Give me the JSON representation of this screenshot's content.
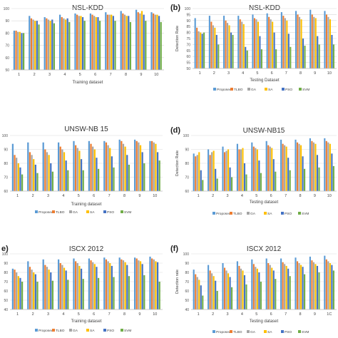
{
  "series_colors": [
    "#5B9BD5",
    "#ED7D31",
    "#A5A5A5",
    "#FFC000",
    "#4472C4",
    "#70AD47"
  ],
  "chart_data": [
    {
      "panel_label": "",
      "type": "bar",
      "title": "NSL-KDD",
      "xlabel": "Training dataset",
      "ylabel": "",
      "ylim": [
        50,
        100
      ],
      "yticks": [
        50,
        60,
        70,
        80,
        90,
        100
      ],
      "grid": true,
      "legend": "none",
      "categories": [
        "1",
        "2",
        "3",
        "4",
        "5",
        "6",
        "7",
        "8",
        "9",
        "10"
      ],
      "series": [
        {
          "name": "Proposed",
          "values": [
            82,
            94,
            93,
            95,
            96,
            96,
            97,
            98,
            99,
            97
          ]
        },
        {
          "name": "TLBO",
          "values": [
            82,
            92,
            92,
            93,
            95,
            95,
            95,
            96,
            97,
            96
          ]
        },
        {
          "name": "GA",
          "values": [
            81,
            91,
            91,
            92,
            94,
            94,
            95,
            95,
            96,
            95
          ]
        },
        {
          "name": "SA",
          "values": [
            81,
            90,
            90,
            91,
            94,
            93,
            95,
            94,
            98,
            95
          ]
        },
        {
          "name": "PSO",
          "values": [
            80,
            90,
            91,
            92,
            93,
            93,
            94,
            94,
            95,
            94
          ]
        },
        {
          "name": "SVM",
          "values": [
            80,
            87,
            88,
            89,
            90,
            90,
            90,
            89,
            90,
            89
          ]
        }
      ]
    },
    {
      "panel_label": "(b)",
      "type": "bar",
      "title": "NSL-KDD",
      "xlabel": "Testing Dataset",
      "ylabel": "Detection Rate",
      "ylim": [
        50,
        100
      ],
      "yticks": [
        50,
        55,
        60,
        65,
        70,
        75,
        80,
        85,
        90,
        95,
        100
      ],
      "grid": true,
      "legend": "bottom",
      "categories": [
        "1",
        "2",
        "3",
        "4",
        "5",
        "6",
        "7",
        "8",
        "9",
        "10"
      ],
      "series": [
        {
          "name": "Proposed",
          "values": [
            92,
            94,
            94,
            94,
            95,
            96,
            97,
            98,
            99,
            98
          ]
        },
        {
          "name": "TLBO",
          "values": [
            84,
            89,
            90,
            91,
            92,
            93,
            94,
            95,
            95,
            95
          ]
        },
        {
          "name": "GA",
          "values": [
            81,
            86,
            88,
            89,
            91,
            91,
            92,
            93,
            93,
            93
          ]
        },
        {
          "name": "SA",
          "values": [
            80,
            84,
            86,
            87,
            89,
            89,
            90,
            91,
            92,
            91
          ]
        },
        {
          "name": "PSO",
          "values": [
            79,
            78,
            80,
            68,
            77,
            80,
            79,
            75,
            77,
            78
          ]
        },
        {
          "name": "SVM",
          "values": [
            80,
            70,
            78,
            65,
            66,
            66,
            68,
            69,
            70,
            70
          ]
        }
      ]
    },
    {
      "panel_label": "",
      "type": "bar",
      "title": "UNSW-NB 15",
      "xlabel": "Training dataset",
      "ylabel": "",
      "ylim": [
        60,
        100
      ],
      "yticks": [
        60,
        70,
        80,
        90,
        100
      ],
      "grid": true,
      "legend": "bottom",
      "categories": [
        "1",
        "2",
        "3",
        "4",
        "5",
        "6",
        "7",
        "8",
        "9",
        "10"
      ],
      "series": [
        {
          "name": "Proposed",
          "values": [
            94,
            95,
            95,
            95,
            96,
            96,
            96,
            97,
            97,
            96
          ]
        },
        {
          "name": "TLBO",
          "values": [
            86,
            88,
            90,
            92,
            93,
            94,
            95,
            96,
            96,
            96
          ]
        },
        {
          "name": "GA",
          "values": [
            84,
            86,
            88,
            90,
            91,
            92,
            93,
            94,
            95,
            95
          ]
        },
        {
          "name": "SA",
          "values": [
            80,
            83,
            86,
            88,
            89,
            90,
            91,
            92,
            93,
            94
          ]
        },
        {
          "name": "PSO",
          "values": [
            77,
            79,
            80,
            82,
            83,
            84,
            85,
            86,
            88,
            88
          ]
        },
        {
          "name": "SVM",
          "values": [
            72,
            73,
            74,
            75,
            75,
            76,
            77,
            79,
            80,
            82
          ]
        }
      ]
    },
    {
      "panel_label": "(d)",
      "type": "bar",
      "title": "UNSW-NB15",
      "xlabel": "Testing dataset",
      "ylabel": "Detection Rate",
      "ylim": [
        60,
        100
      ],
      "yticks": [
        60,
        70,
        80,
        90,
        100
      ],
      "grid": true,
      "legend": "bottom",
      "categories": [
        "1",
        "2",
        "3",
        "4",
        "5",
        "6",
        "7",
        "8",
        "9",
        "10"
      ],
      "series": [
        {
          "name": "Proposed",
          "values": [
            87,
            90,
            92,
            94,
            95,
            96,
            97,
            97,
            98,
            98
          ]
        },
        {
          "name": "TLBO",
          "values": [
            85,
            86,
            88,
            90,
            92,
            93,
            94,
            95,
            96,
            96
          ]
        },
        {
          "name": "GA",
          "values": [
            86,
            88,
            89,
            90,
            91,
            92,
            93,
            94,
            95,
            95
          ]
        },
        {
          "name": "SA",
          "values": [
            88,
            89,
            90,
            91,
            90,
            91,
            92,
            93,
            94,
            94
          ]
        },
        {
          "name": "PSO",
          "values": [
            75,
            76,
            77,
            80,
            82,
            83,
            84,
            85,
            86,
            87
          ]
        },
        {
          "name": "SVM",
          "values": [
            68,
            69,
            70,
            72,
            73,
            74,
            75,
            76,
            77,
            78
          ]
        }
      ]
    },
    {
      "panel_label": "e)",
      "type": "bar",
      "title": "ISCX 2012",
      "xlabel": "Training dataset",
      "ylabel": "",
      "ylim": [
        40,
        100
      ],
      "yticks": [
        40,
        50,
        60,
        70,
        80,
        90,
        100
      ],
      "grid": true,
      "legend": "bottom",
      "categories": [
        "1",
        "2",
        "3",
        "4",
        "5",
        "6",
        "7",
        "8",
        "9",
        "10"
      ],
      "series": [
        {
          "name": "Proposed",
          "values": [
            84,
            92,
            94,
            94,
            95,
            95,
            96,
            96,
            96,
            97
          ]
        },
        {
          "name": "TLBO",
          "values": [
            83,
            86,
            88,
            90,
            92,
            93,
            94,
            94,
            95,
            95
          ]
        },
        {
          "name": "GA",
          "values": [
            80,
            83,
            86,
            88,
            90,
            91,
            92,
            93,
            93,
            94
          ]
        },
        {
          "name": "SA",
          "values": [
            76,
            80,
            83,
            85,
            87,
            89,
            90,
            91,
            92,
            92
          ]
        },
        {
          "name": "PSO",
          "values": [
            74,
            78,
            80,
            82,
            84,
            86,
            87,
            88,
            89,
            91
          ]
        },
        {
          "name": "SVM",
          "values": [
            70,
            70,
            71,
            72,
            73,
            74,
            75,
            76,
            77,
            70
          ]
        }
      ]
    },
    {
      "panel_label": "(f)",
      "type": "bar",
      "title": "ISCX 2012",
      "xlabel": "Testing dataset",
      "ylabel": "Detection rate",
      "ylim": [
        40,
        100
      ],
      "yticks": [
        40,
        50,
        60,
        70,
        80,
        90,
        100
      ],
      "grid": true,
      "legend": "bottom",
      "categories": [
        "1",
        "2",
        "3",
        "4",
        "5",
        "6",
        "7",
        "8",
        "9",
        "1C"
      ],
      "series": [
        {
          "name": "Proposed",
          "values": [
            83,
            88,
            90,
            92,
            94,
            95,
            95,
            96,
            97,
            98
          ]
        },
        {
          "name": "TLBO",
          "values": [
            78,
            82,
            85,
            87,
            89,
            90,
            91,
            92,
            93,
            94
          ]
        },
        {
          "name": "GA",
          "values": [
            75,
            79,
            82,
            84,
            86,
            88,
            89,
            90,
            91,
            92
          ]
        },
        {
          "name": "SA",
          "values": [
            72,
            76,
            79,
            82,
            84,
            85,
            87,
            88,
            89,
            90
          ]
        },
        {
          "name": "PSO",
          "values": [
            66,
            71,
            75,
            77,
            80,
            82,
            84,
            86,
            87,
            88
          ]
        },
        {
          "name": "SVM",
          "values": [
            55,
            60,
            64,
            67,
            70,
            73,
            76,
            78,
            80,
            82
          ]
        }
      ]
    }
  ]
}
